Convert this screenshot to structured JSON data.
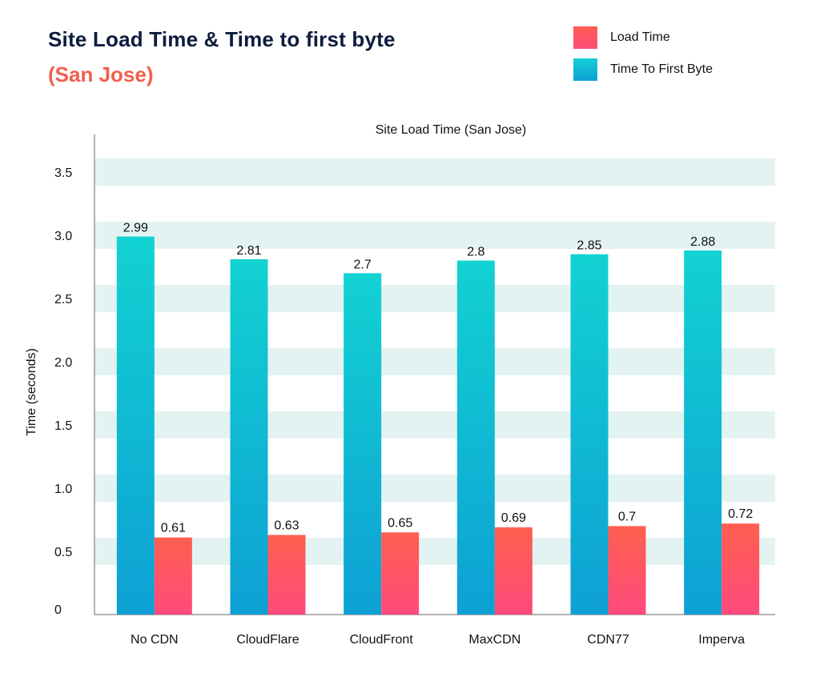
{
  "header": {
    "title": "Site Load Time & Time to first byte",
    "subtitle": "(San Jose)"
  },
  "legend": {
    "placement": "top-right",
    "items": [
      {
        "label": "Load Time",
        "color": "#ff5a5f"
      },
      {
        "label": "Time To First Byte",
        "color": "#0bc3d3"
      }
    ]
  },
  "chart_data": {
    "type": "bar",
    "title": "Site Load Time (San Jose)",
    "xlabel": "",
    "ylabel": "Time (seconds)",
    "ylim": [
      0,
      3.6
    ],
    "yticks": [
      "0",
      "0.5",
      "1.0",
      "1.5",
      "2.0",
      "2.5",
      "3.0",
      "3.5"
    ],
    "grid": "banded",
    "categories": [
      "No CDN",
      "CloudFlare",
      "CloudFront",
      "MaxCDN",
      "CDN77",
      "Imperva"
    ],
    "series": [
      {
        "name": "Time To First Byte",
        "values": [
          2.99,
          2.81,
          2.7,
          2.8,
          2.85,
          2.88
        ],
        "color_top": "#12d2d2",
        "color_bottom": "#0ea0d4"
      },
      {
        "name": "Load Time",
        "values": [
          0.61,
          0.63,
          0.65,
          0.69,
          0.7,
          0.72
        ],
        "color_top": "#ff5f4f",
        "color_bottom": "#ff4a7c"
      }
    ]
  }
}
